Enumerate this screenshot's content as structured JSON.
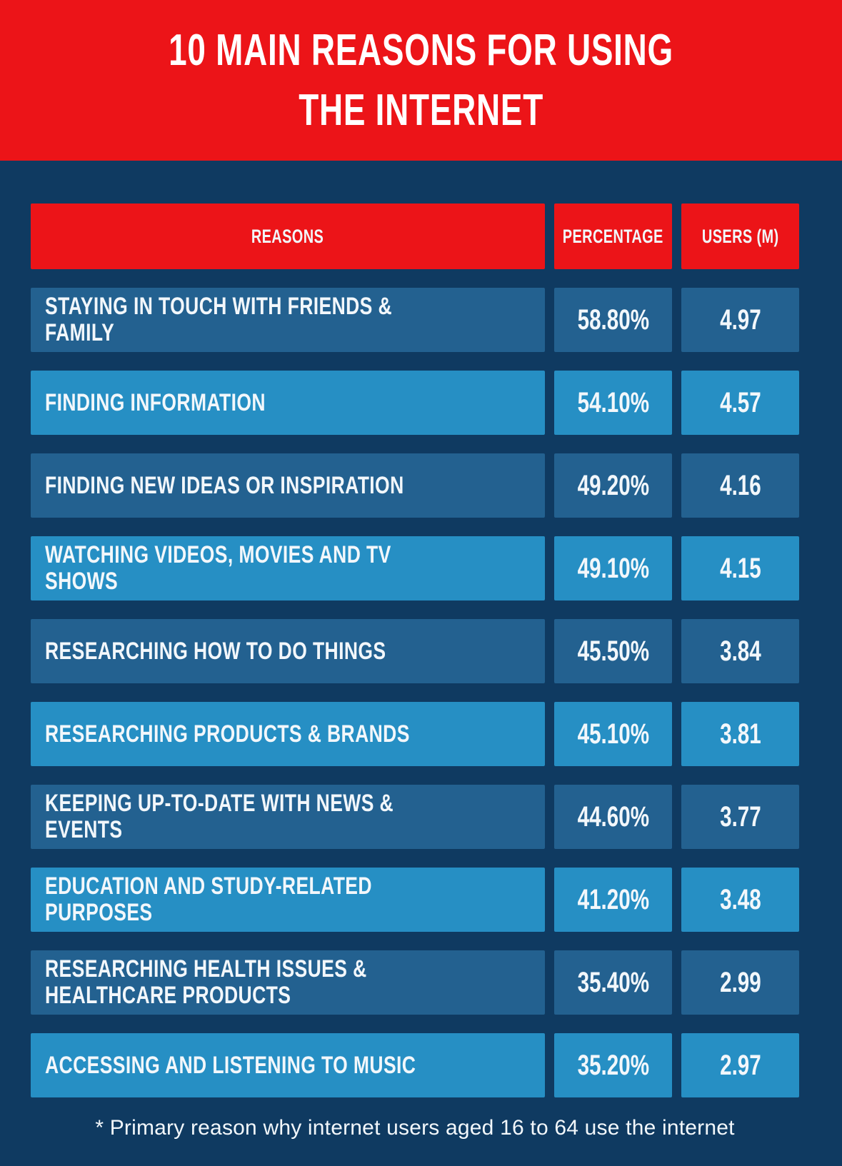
{
  "title": {
    "line1": "10 MAIN REASONS FOR USING",
    "line2": "THE INTERNET"
  },
  "table": {
    "headers": [
      "REASONS",
      "PERCENTAGE",
      "USERS (M)"
    ],
    "rows": [
      {
        "reason": "STAYING IN TOUCH WITH FRIENDS & FAMILY",
        "percentage": "58.80%",
        "users": "4.97"
      },
      {
        "reason": "FINDING INFORMATION",
        "percentage": "54.10%",
        "users": "4.57"
      },
      {
        "reason": "FINDING NEW IDEAS OR INSPIRATION",
        "percentage": "49.20%",
        "users": "4.16"
      },
      {
        "reason": "WATCHING VIDEOS, MOVIES AND TV SHOWS",
        "percentage": "49.10%",
        "users": "4.15"
      },
      {
        "reason": "RESEARCHING HOW TO DO THINGS",
        "percentage": "45.50%",
        "users": "3.84"
      },
      {
        "reason": "RESEARCHING PRODUCTS & BRANDS",
        "percentage": "45.10%",
        "users": "3.81"
      },
      {
        "reason": "KEEPING UP-TO-DATE WITH NEWS & EVENTS",
        "percentage": "44.60%",
        "users": "3.77"
      },
      {
        "reason": "EDUCATION AND STUDY-RELATED PURPOSES",
        "percentage": "41.20%",
        "users": "3.48"
      },
      {
        "reason": "RESEARCHING HEALTH ISSUES &\nHEALTHCARE PRODUCTS",
        "percentage": "35.40%",
        "users": "2.99"
      },
      {
        "reason": "ACCESSING AND LISTENING TO MUSIC",
        "percentage": "35.20%",
        "users": "2.97"
      }
    ]
  },
  "footnote": "* Primary reason why internet users aged 16 to 64 use the internet",
  "colors": {
    "red": "#ec1418",
    "navy": "#0f3a61",
    "row_dark": "#236190",
    "row_light": "#268fc4",
    "text": "#f2f7fb"
  },
  "chart_data": {
    "type": "table",
    "title": "10 MAIN REASONS FOR USING THE INTERNET",
    "columns": [
      "REASONS",
      "PERCENTAGE",
      "USERS (M)"
    ],
    "rows": [
      [
        "STAYING IN TOUCH WITH FRIENDS & FAMILY",
        58.8,
        4.97
      ],
      [
        "FINDING INFORMATION",
        54.1,
        4.57
      ],
      [
        "FINDING NEW IDEAS OR INSPIRATION",
        49.2,
        4.16
      ],
      [
        "WATCHING VIDEOS, MOVIES AND TV SHOWS",
        49.1,
        4.15
      ],
      [
        "RESEARCHING HOW TO DO THINGS",
        45.5,
        3.84
      ],
      [
        "RESEARCHING PRODUCTS & BRANDS",
        45.1,
        3.81
      ],
      [
        "KEEPING UP-TO-DATE WITH NEWS & EVENTS",
        44.6,
        3.77
      ],
      [
        "EDUCATION AND STUDY-RELATED PURPOSES",
        41.2,
        3.48
      ],
      [
        "RESEARCHING HEALTH ISSUES & HEALTHCARE PRODUCTS",
        35.4,
        2.99
      ],
      [
        "ACCESSING AND LISTENING TO MUSIC",
        35.2,
        2.97
      ]
    ],
    "percentage_unit": "%",
    "users_unit": "millions",
    "footnote": "* Primary reason why internet users aged 16 to 64 use the internet"
  }
}
